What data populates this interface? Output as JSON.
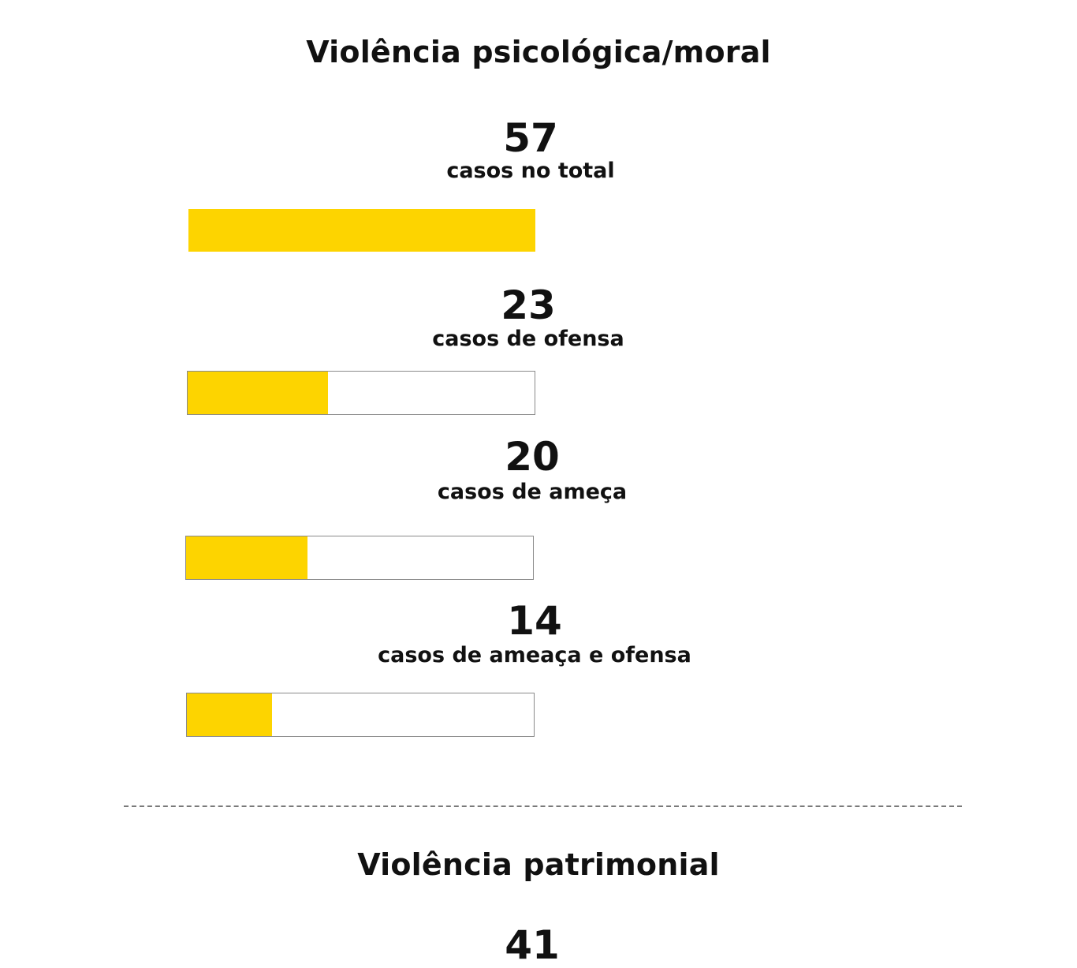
{
  "colors": {
    "bar_fill": "#fdd400",
    "bar_border": "#8a8a8a",
    "text": "#111111",
    "divider": "#7a7a7a"
  },
  "sections": [
    {
      "title": "Violência psicológica/moral",
      "stats": [
        {
          "value": "57",
          "label": "casos no total"
        },
        {
          "value": "23",
          "label": "casos de ofensa"
        },
        {
          "value": "20",
          "label": "casos de ameça"
        },
        {
          "value": "14",
          "label": "casos de ameaça e ofensa"
        }
      ]
    },
    {
      "title": "Violência patrimonial",
      "stats": [
        {
          "value": "41"
        }
      ]
    }
  ],
  "chart_data": {
    "type": "bar",
    "orientation": "horizontal",
    "title": "Violência psicológica/moral",
    "categories": [
      "casos no total",
      "casos de ofensa",
      "casos de ameça",
      "casos de ameaça e ofensa"
    ],
    "values": [
      57,
      23,
      20,
      14
    ],
    "xlim": [
      0,
      57
    ],
    "grid": false,
    "legend": "none"
  }
}
